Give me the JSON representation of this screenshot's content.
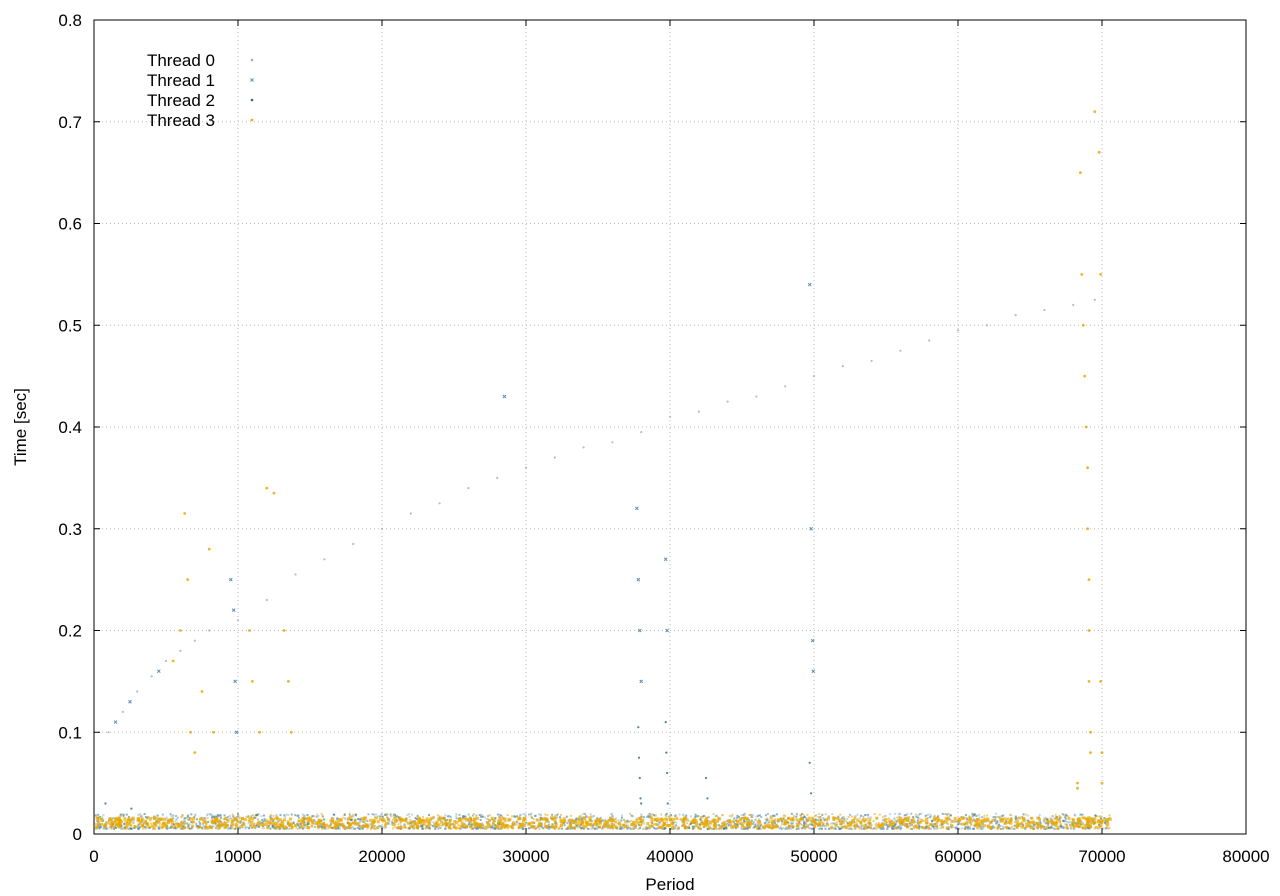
{
  "chart_data": {
    "type": "scatter",
    "title": "",
    "xlabel": "Period",
    "ylabel": "Time [sec]",
    "xlim": [
      0,
      80000
    ],
    "ylim": [
      0,
      0.8
    ],
    "x_ticks": [
      0,
      10000,
      20000,
      30000,
      40000,
      50000,
      60000,
      70000,
      80000
    ],
    "y_ticks": [
      0,
      0.1,
      0.2,
      0.3,
      0.4,
      0.5,
      0.6,
      0.7,
      0.8
    ],
    "x_tick_labels": [
      "0",
      "10000",
      "20000",
      "30000",
      "40000",
      "50000",
      "60000",
      "70000",
      "80000"
    ],
    "y_tick_labels": [
      "0",
      "0.1",
      "0.2",
      "0.3",
      "0.4",
      "0.5",
      "0.6",
      "0.7",
      "0.8"
    ],
    "grid": true,
    "legend_position": "top-left",
    "colors": {
      "thread0": "#9fb3c3",
      "thread1": "#5b8fb5",
      "thread2": "#2f6f86",
      "thread3": "#e8a800"
    },
    "series": [
      {
        "name": "Thread 0",
        "color": "#9fb3c3",
        "points": [
          [
            1000,
            0.1
          ],
          [
            2000,
            0.12
          ],
          [
            3000,
            0.14
          ],
          [
            4000,
            0.155
          ],
          [
            5000,
            0.17
          ],
          [
            6000,
            0.18
          ],
          [
            7000,
            0.19
          ],
          [
            8000,
            0.2
          ],
          [
            10000,
            0.21
          ],
          [
            12000,
            0.23
          ],
          [
            14000,
            0.255
          ],
          [
            16000,
            0.27
          ],
          [
            18000,
            0.285
          ],
          [
            20000,
            0.3
          ],
          [
            22000,
            0.315
          ],
          [
            24000,
            0.325
          ],
          [
            26000,
            0.34
          ],
          [
            28000,
            0.35
          ],
          [
            30000,
            0.36
          ],
          [
            32000,
            0.37
          ],
          [
            34000,
            0.38
          ],
          [
            36000,
            0.385
          ],
          [
            38000,
            0.395
          ],
          [
            40000,
            0.41
          ],
          [
            42000,
            0.415
          ],
          [
            44000,
            0.425
          ],
          [
            46000,
            0.43
          ],
          [
            48000,
            0.44
          ],
          [
            50000,
            0.45
          ],
          [
            52000,
            0.46
          ],
          [
            54000,
            0.465
          ],
          [
            56000,
            0.475
          ],
          [
            58000,
            0.485
          ],
          [
            60000,
            0.495
          ],
          [
            62000,
            0.5
          ],
          [
            64000,
            0.51
          ],
          [
            66000,
            0.515
          ],
          [
            68000,
            0.52
          ],
          [
            69500,
            0.525
          ]
        ]
      },
      {
        "name": "Thread 1",
        "color": "#5b8fb5",
        "points": [
          [
            1500,
            0.11
          ],
          [
            2500,
            0.13
          ],
          [
            4500,
            0.16
          ],
          [
            9500,
            0.25
          ],
          [
            9700,
            0.22
          ],
          [
            9800,
            0.15
          ],
          [
            9900,
            0.1
          ],
          [
            28500,
            0.43
          ],
          [
            37700,
            0.32
          ],
          [
            37800,
            0.25
          ],
          [
            37900,
            0.2
          ],
          [
            38000,
            0.15
          ],
          [
            39700,
            0.27
          ],
          [
            39800,
            0.2
          ],
          [
            49700,
            0.54
          ],
          [
            49800,
            0.3
          ],
          [
            49900,
            0.19
          ],
          [
            49950,
            0.16
          ]
        ]
      },
      {
        "name": "Thread 2",
        "color": "#2f6f86",
        "points": [
          [
            800,
            0.03
          ],
          [
            2600,
            0.025
          ],
          [
            37800,
            0.105
          ],
          [
            37850,
            0.075
          ],
          [
            37900,
            0.055
          ],
          [
            37950,
            0.035
          ],
          [
            38000,
            0.03
          ],
          [
            39700,
            0.11
          ],
          [
            39750,
            0.08
          ],
          [
            39800,
            0.06
          ],
          [
            39850,
            0.03
          ],
          [
            42500,
            0.055
          ],
          [
            42600,
            0.035
          ],
          [
            49700,
            0.07
          ],
          [
            49800,
            0.04
          ]
        ]
      },
      {
        "name": "Thread 3",
        "color": "#e8a800",
        "points": [
          [
            5500,
            0.17
          ],
          [
            6000,
            0.2
          ],
          [
            6300,
            0.315
          ],
          [
            6500,
            0.25
          ],
          [
            6700,
            0.1
          ],
          [
            7000,
            0.08
          ],
          [
            7500,
            0.14
          ],
          [
            8000,
            0.28
          ],
          [
            8300,
            0.1
          ],
          [
            10800,
            0.2
          ],
          [
            11000,
            0.15
          ],
          [
            11500,
            0.1
          ],
          [
            12000,
            0.34
          ],
          [
            12500,
            0.335
          ],
          [
            13200,
            0.2
          ],
          [
            13500,
            0.15
          ],
          [
            13700,
            0.1
          ],
          [
            68500,
            0.65
          ],
          [
            68600,
            0.55
          ],
          [
            68700,
            0.5
          ],
          [
            68800,
            0.45
          ],
          [
            68900,
            0.4
          ],
          [
            69000,
            0.36
          ],
          [
            69000,
            0.3
          ],
          [
            69100,
            0.25
          ],
          [
            69100,
            0.2
          ],
          [
            69100,
            0.15
          ],
          [
            69200,
            0.1
          ],
          [
            69200,
            0.08
          ],
          [
            68300,
            0.05
          ],
          [
            68300,
            0.045
          ],
          [
            69500,
            0.71
          ],
          [
            69800,
            0.67
          ],
          [
            69900,
            0.55
          ],
          [
            69900,
            0.15
          ],
          [
            70000,
            0.08
          ],
          [
            70000,
            0.05
          ]
        ]
      }
    ],
    "baseline_band": {
      "description_values": "dense points across all threads",
      "x_range": [
        0,
        70500
      ],
      "y_range": [
        0.005,
        0.02
      ]
    }
  }
}
